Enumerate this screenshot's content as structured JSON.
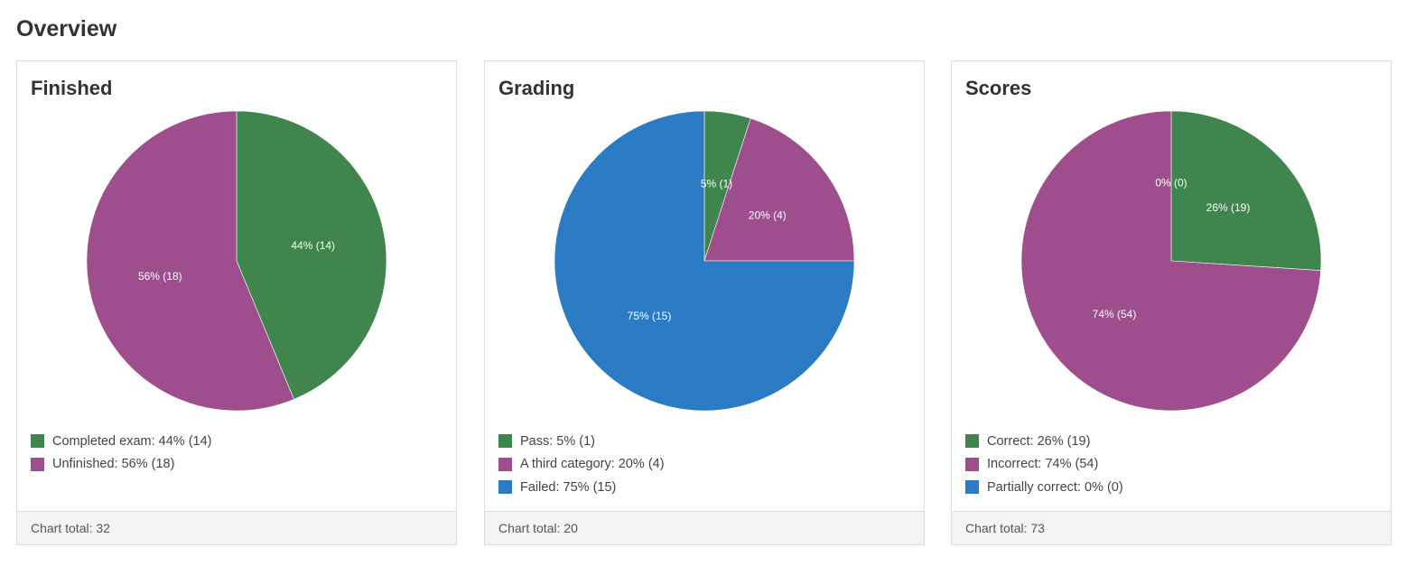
{
  "header": {
    "title": "Overview"
  },
  "chart_data": [
    {
      "type": "pie",
      "title": "Finished",
      "slices": [
        {
          "label": "Completed exam",
          "percent": "44%",
          "value": 14,
          "color": "#40854d",
          "slice_label": "44% (14)",
          "legend_text": "Completed exam: 44% (14)"
        },
        {
          "label": "Unfinished",
          "percent": "56%",
          "value": 18,
          "color": "#9e4e8c",
          "slice_label": "56% (18)",
          "legend_text": "Unfinished: 56% (18)"
        }
      ],
      "footer_label": "Chart total:",
      "total": 32
    },
    {
      "type": "pie",
      "title": "Grading",
      "slices": [
        {
          "label": "Pass",
          "percent": "5%",
          "value": 1,
          "color": "#40854d",
          "slice_label": "5% (1)",
          "legend_text": "Pass: 5% (1)"
        },
        {
          "label": "A third category",
          "percent": "20%",
          "value": 4,
          "color": "#9e4e8c",
          "slice_label": "20% (4)",
          "legend_text": "A third category: 20% (4)"
        },
        {
          "label": "Failed",
          "percent": "75%",
          "value": 15,
          "color": "#2b7bc4",
          "slice_label": "75% (15)",
          "legend_text": "Failed: 75% (15)"
        }
      ],
      "footer_label": "Chart total:",
      "total": 20
    },
    {
      "type": "pie",
      "title": "Scores",
      "slices": [
        {
          "label": "Correct",
          "percent": "26%",
          "value": 19,
          "color": "#40854d",
          "slice_label": "26% (19)",
          "legend_text": "Correct: 26% (19)"
        },
        {
          "label": "Incorrect",
          "percent": "74%",
          "value": 54,
          "color": "#9e4e8c",
          "slice_label": "74% (54)",
          "legend_text": "Incorrect: 74% (54)"
        },
        {
          "label": "Partially correct",
          "percent": "0%",
          "value": 0,
          "color": "#2b7bc4",
          "slice_label": "0% (0)",
          "legend_text": "Partially correct: 0% (0)"
        }
      ],
      "footer_label": "Chart total:",
      "total": 73
    }
  ]
}
